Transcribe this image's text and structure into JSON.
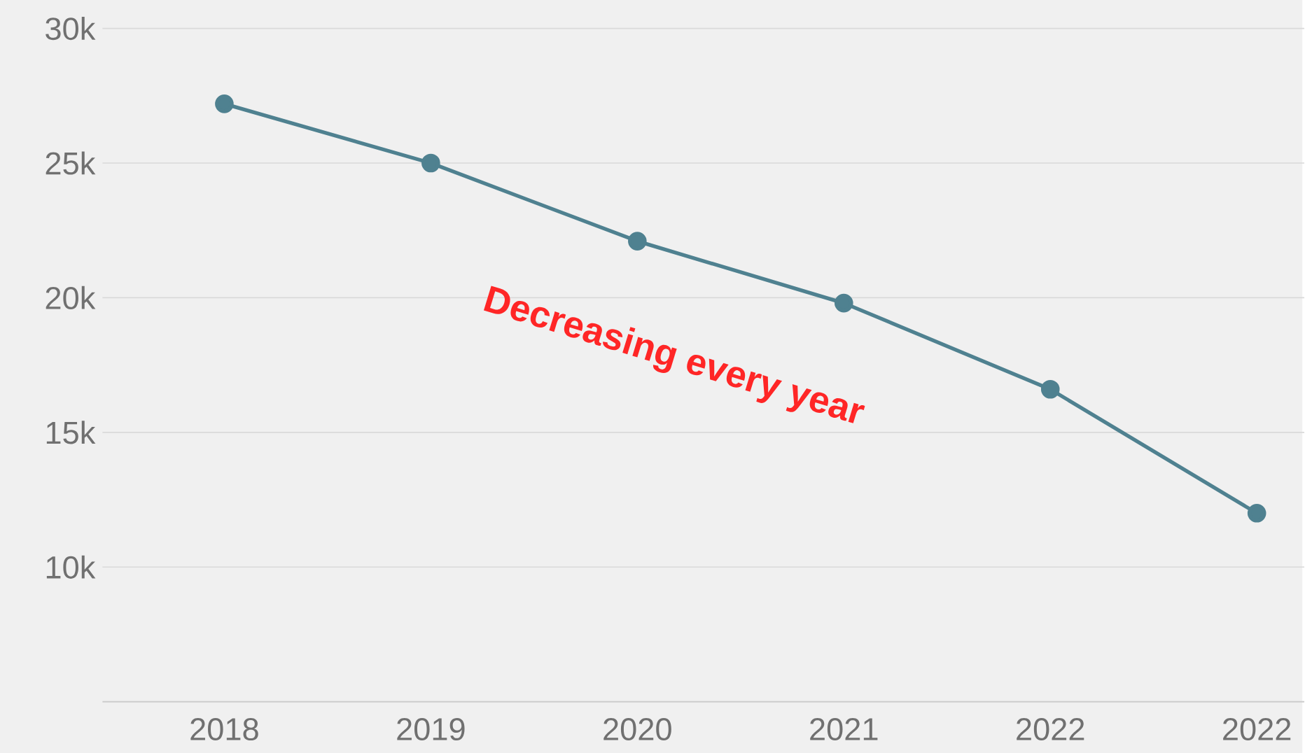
{
  "chart_data": {
    "type": "line",
    "categories": [
      "2018",
      "2019",
      "2020",
      "2021",
      "2022",
      "2022"
    ],
    "values": [
      27200,
      25000,
      22100,
      19800,
      16600,
      12000
    ],
    "color": "#4f8190",
    "ylim": [
      5000,
      30000
    ],
    "yticks": [
      {
        "value": 10000,
        "label": "10k"
      },
      {
        "value": 15000,
        "label": "15k"
      },
      {
        "value": 20000,
        "label": "20k"
      },
      {
        "value": 25000,
        "label": "25k"
      },
      {
        "value": 30000,
        "label": "30k"
      }
    ],
    "grid": "y",
    "marker": "circle",
    "annotations": [
      "Decreasing every year"
    ]
  }
}
